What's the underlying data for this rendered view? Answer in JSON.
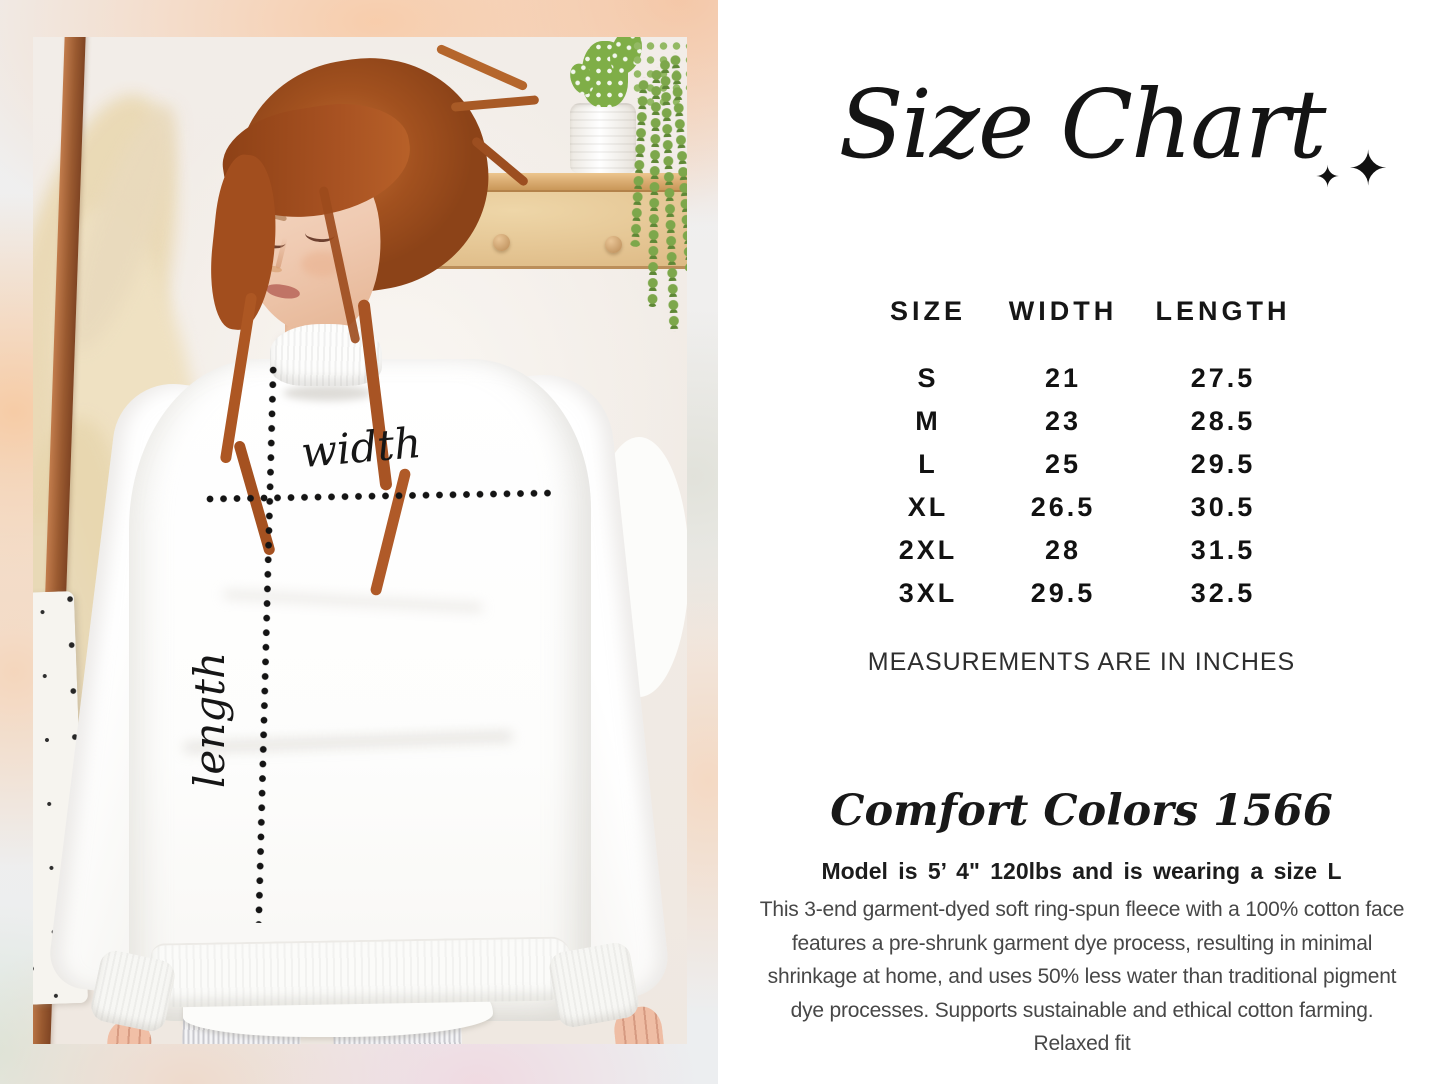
{
  "page": {
    "accent_ink": "#141414",
    "panel_background": "#ffffff",
    "pastel_border_colors": [
      "#f8cbac",
      "#f0d8e0",
      "#d9e6da",
      "#eff0f1"
    ]
  },
  "photo": {
    "annotations": {
      "width_label": "width",
      "length_label": "length"
    }
  },
  "size_chart": {
    "title": "Size Chart",
    "sparkle_icon_small": "✦",
    "sparkle_icon_large": "✦",
    "columns": [
      "SIZE",
      "WIDTH",
      "LENGTH"
    ],
    "rows": [
      [
        "S",
        "21",
        "27.5"
      ],
      [
        "M",
        "23",
        "28.5"
      ],
      [
        "L",
        "25",
        "29.5"
      ],
      [
        "XL",
        "26.5",
        "30.5"
      ],
      [
        "2XL",
        "28",
        "31.5"
      ],
      [
        "3XL",
        "29.5",
        "32.5"
      ]
    ],
    "note": "MEASUREMENTS ARE IN INCHES",
    "product_name": "Comfort Colors 1566",
    "model_info": "Model is 5’ 4\" 120lbs and is wearing a size L",
    "description_lines": [
      "This 3-end garment-dyed soft ring-spun fleece with a 100% cotton face",
      "features a pre-shrunk garment dye process, resulting in minimal",
      "shrinkage at home, and uses 50% less water than traditional pigment",
      "dye processes. Supports sustainable and ethical cotton farming.",
      "Relaxed fit"
    ]
  },
  "chart_data": {
    "type": "table",
    "title": "Size Chart",
    "columns": [
      "SIZE",
      "WIDTH",
      "LENGTH"
    ],
    "rows": [
      [
        "S",
        21,
        27.5
      ],
      [
        "M",
        23,
        28.5
      ],
      [
        "L",
        25,
        29.5
      ],
      [
        "XL",
        26.5,
        30.5
      ],
      [
        "2XL",
        28,
        31.5
      ],
      [
        "3XL",
        29.5,
        32.5
      ]
    ],
    "units": "inches"
  }
}
